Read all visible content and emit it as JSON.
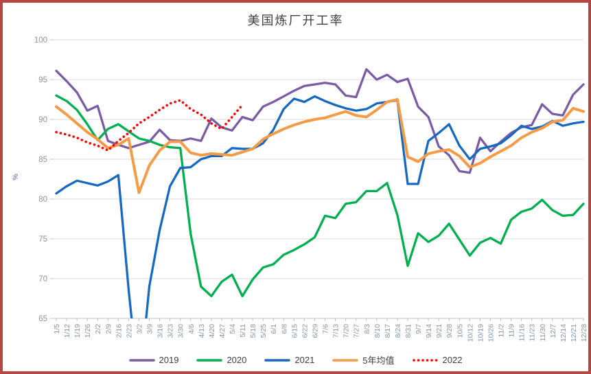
{
  "title": "美国炼厂开工率",
  "y_axis": {
    "label": "%",
    "min": 65,
    "max": 100,
    "step": 5,
    "ticks": [
      65,
      70,
      75,
      80,
      85,
      90,
      95,
      100
    ]
  },
  "colors": {
    "frame_border": "#b54941",
    "gridline": "#d9d9d9",
    "axis": "#bfbfbf",
    "tick_label": "#8496ab",
    "title_text": "#404040"
  },
  "chart_data": {
    "type": "line",
    "title": "美国炼厂开工率",
    "ylabel": "%",
    "ylim": [
      65,
      100
    ],
    "grid": true,
    "legend_position": "bottom",
    "categories": [
      "1/5",
      "1/12",
      "1/19",
      "1/26",
      "2/2",
      "2/9",
      "2/16",
      "2/23",
      "3/2",
      "3/9",
      "3/16",
      "3/23",
      "3/30",
      "4/6",
      "4/13",
      "4/20",
      "4/27",
      "5/4",
      "5/11",
      "5/18",
      "5/25",
      "6/1",
      "6/8",
      "6/15",
      "6/22",
      "6/29",
      "7/6",
      "7/13",
      "7/20",
      "7/27",
      "8/3",
      "8/10",
      "8/17",
      "8/24",
      "8/31",
      "9/7",
      "9/14",
      "9/21",
      "9/28",
      "10/5",
      "10/12",
      "10/19",
      "10/26",
      "11/2",
      "11/9",
      "11/16",
      "11/23",
      "11/30",
      "12/7",
      "12/14",
      "12/21",
      "12/28"
    ],
    "series": [
      {
        "name": "2019",
        "color": "#7b5ba6",
        "style": "solid",
        "values": [
          96.1,
          94.8,
          93.4,
          91.1,
          91.7,
          87.3,
          86.8,
          86.4,
          86.8,
          87.2,
          88.7,
          87.4,
          87.3,
          87.6,
          87.3,
          90.1,
          89.0,
          88.6,
          90.3,
          89.9,
          91.6,
          92.2,
          92.9,
          93.6,
          94.2,
          94.4,
          94.6,
          94.4,
          93.0,
          92.8,
          96.3,
          95.0,
          95.6,
          94.7,
          95.1,
          91.6,
          90.3,
          86.6,
          85.5,
          83.5,
          83.3,
          87.7,
          86.0,
          87.2,
          88.3,
          89.0,
          89.3,
          91.9,
          90.7,
          90.5,
          93.1,
          94.4
        ]
      },
      {
        "name": "2020",
        "color": "#00b050",
        "style": "solid",
        "values": [
          93.0,
          92.3,
          91.2,
          89.4,
          87.4,
          88.8,
          89.4,
          88.5,
          87.6,
          87.3,
          86.8,
          86.5,
          86.4,
          75.6,
          69.0,
          67.8,
          69.6,
          70.5,
          67.8,
          69.9,
          71.4,
          71.8,
          73.0,
          73.6,
          74.3,
          75.2,
          77.9,
          77.6,
          79.4,
          79.6,
          81.0,
          81.0,
          82.0,
          78.0,
          71.6,
          75.7,
          74.6,
          75.4,
          76.9,
          74.9,
          72.9,
          74.5,
          75.1,
          74.4,
          77.4,
          78.4,
          78.8,
          79.9,
          78.6,
          77.9,
          78.0,
          79.4
        ]
      },
      {
        "name": "2021",
        "color": "#1669c1",
        "style": "solid",
        "values": [
          80.7,
          81.6,
          82.3,
          82.0,
          81.7,
          82.2,
          83.0,
          68.6,
          56.0,
          69.0,
          76.1,
          81.6,
          83.9,
          84.0,
          85.0,
          85.4,
          85.4,
          86.4,
          86.3,
          86.3,
          87.0,
          88.7,
          91.3,
          92.6,
          92.2,
          92.9,
          92.3,
          91.8,
          91.4,
          91.1,
          91.3,
          92.0,
          92.2,
          92.4,
          81.9,
          81.9,
          87.3,
          88.3,
          89.4,
          86.7,
          85.0,
          86.3,
          86.6,
          87.0,
          88.0,
          89.2,
          88.8,
          89.1,
          89.8,
          89.2,
          89.5,
          89.7
        ]
      },
      {
        "name": "5年均值",
        "color": "#f59b45",
        "style": "solid",
        "values": [
          91.6,
          90.6,
          89.5,
          88.4,
          87.5,
          86.4,
          86.8,
          87.6,
          80.8,
          84.2,
          86.1,
          87.2,
          87.2,
          85.8,
          85.5,
          85.7,
          85.6,
          85.5,
          85.9,
          86.3,
          87.5,
          88.2,
          88.8,
          89.3,
          89.7,
          90.0,
          90.2,
          90.6,
          91.0,
          90.5,
          90.3,
          91.2,
          92.2,
          92.5,
          85.3,
          84.7,
          85.7,
          86.0,
          86.2,
          85.4,
          84.0,
          84.5,
          85.3,
          86.0,
          86.7,
          87.7,
          88.4,
          88.9,
          89.7,
          89.9,
          91.4,
          91.0
        ]
      },
      {
        "name": "2022",
        "color": "#ff0000",
        "style": "dotted",
        "values": [
          88.4,
          88.1,
          87.7,
          87.1,
          86.7,
          86.1,
          87.3,
          88.3,
          89.5,
          90.3,
          91.2,
          92.0,
          92.4,
          91.3,
          90.6,
          89.5,
          88.8,
          90.3,
          91.8
        ]
      }
    ]
  }
}
